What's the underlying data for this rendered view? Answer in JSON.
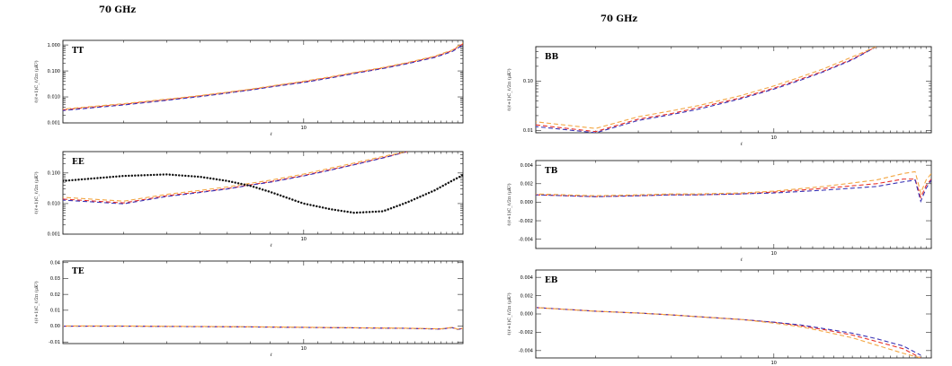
{
  "figure": {
    "left_title": "70 GHz",
    "right_title": "70 GHz"
  },
  "colors": {
    "red": "#e8322a",
    "blue": "#3a33b5",
    "orange": "#f3a743",
    "black": "#111111"
  },
  "chart_data": [
    {
      "type": "line",
      "label": "TT",
      "ylabel": "ℓ(ℓ+1)C_ℓ/2π  (μK²)",
      "xlabel": "ℓ",
      "xscale": "log",
      "yscale": "log",
      "xlim": [
        2,
        29
      ],
      "ylim": [
        0.001,
        1.5
      ],
      "x_tick_labels": [
        {
          "value": 10,
          "label": "10"
        }
      ],
      "y_tick_labels": [
        {
          "value": 0.001,
          "label": "0.001"
        },
        {
          "value": 0.01,
          "label": "0.010"
        },
        {
          "value": 0.1,
          "label": "0.100"
        },
        {
          "value": 1,
          "label": "1.000"
        }
      ],
      "series": [
        {
          "color": "#e8322a",
          "dash": "dashed",
          "x": [
            2,
            3,
            4,
            5,
            6,
            7,
            8,
            10,
            12,
            14,
            17,
            20,
            24,
            27,
            29
          ],
          "y": [
            0.0032,
            0.0052,
            0.0078,
            0.0108,
            0.0146,
            0.019,
            0.025,
            0.038,
            0.057,
            0.083,
            0.13,
            0.2,
            0.35,
            0.6,
            1.1
          ]
        },
        {
          "color": "#3a33b5",
          "dash": "dashed",
          "x": [
            2,
            3,
            4,
            5,
            6,
            7,
            8,
            10,
            12,
            14,
            17,
            20,
            24,
            27,
            29
          ],
          "y": [
            0.003,
            0.0049,
            0.0074,
            0.0103,
            0.014,
            0.0182,
            0.024,
            0.036,
            0.054,
            0.079,
            0.124,
            0.19,
            0.33,
            0.56,
            1.0
          ]
        },
        {
          "color": "#f3a743",
          "dash": "dashed",
          "x": [
            2,
            3,
            4,
            5,
            6,
            7,
            8,
            10,
            12,
            14,
            17,
            20,
            24,
            27,
            29
          ],
          "y": [
            0.0034,
            0.0055,
            0.0082,
            0.0113,
            0.0152,
            0.0198,
            0.026,
            0.04,
            0.06,
            0.087,
            0.136,
            0.21,
            0.37,
            0.64,
            1.2
          ]
        }
      ]
    },
    {
      "type": "line",
      "label": "EE",
      "ylabel": "ℓ(ℓ+1)C_ℓ/2π  (μK²)",
      "xlabel": "ℓ",
      "xscale": "log",
      "yscale": "log",
      "xlim": [
        2,
        29
      ],
      "ylim": [
        0.001,
        0.5
      ],
      "x_tick_labels": [
        {
          "value": 10,
          "label": "10"
        }
      ],
      "y_tick_labels": [
        {
          "value": 0.001,
          "label": "0.001"
        },
        {
          "value": 0.01,
          "label": "0.010"
        },
        {
          "value": 0.1,
          "label": "0.100"
        }
      ],
      "series": [
        {
          "color": "#e8322a",
          "dash": "dashed",
          "x": [
            2,
            3,
            4,
            5,
            6,
            7,
            8,
            10,
            12,
            14,
            17,
            20
          ],
          "y": [
            0.014,
            0.0105,
            0.018,
            0.024,
            0.031,
            0.041,
            0.052,
            0.083,
            0.13,
            0.19,
            0.32,
            0.5
          ]
        },
        {
          "color": "#3a33b5",
          "dash": "dashed",
          "x": [
            2,
            3,
            4,
            5,
            6,
            7,
            8,
            10,
            12,
            14,
            17,
            20
          ],
          "y": [
            0.013,
            0.0098,
            0.017,
            0.023,
            0.03,
            0.04,
            0.05,
            0.08,
            0.125,
            0.185,
            0.31,
            0.5
          ]
        },
        {
          "color": "#f3a743",
          "dash": "dashed",
          "x": [
            2,
            3,
            4,
            5,
            6,
            7,
            8,
            10,
            12,
            14,
            17,
            20
          ],
          "y": [
            0.016,
            0.012,
            0.02,
            0.027,
            0.035,
            0.046,
            0.058,
            0.092,
            0.145,
            0.21,
            0.35,
            0.5
          ]
        },
        {
          "color": "#111111",
          "dash": "dotted",
          "x": [
            2,
            3,
            4,
            5,
            6,
            7,
            8,
            10,
            12,
            14,
            17,
            20,
            24,
            27,
            29
          ],
          "y": [
            0.055,
            0.08,
            0.09,
            0.075,
            0.055,
            0.038,
            0.024,
            0.01,
            0.0065,
            0.005,
            0.0056,
            0.011,
            0.027,
            0.056,
            0.085
          ]
        }
      ]
    },
    {
      "type": "line",
      "label": "TE",
      "ylabel": "ℓ(ℓ+1)C_ℓ/2π  (μK²)",
      "xlabel": "ℓ",
      "xscale": "log",
      "yscale": "linear",
      "xlim": [
        2,
        29
      ],
      "ylim": [
        -0.011,
        0.041
      ],
      "x_tick_labels": [
        {
          "value": 10,
          "label": "10"
        }
      ],
      "y_tick_labels": [
        {
          "value": -0.01,
          "label": "-0.01"
        },
        {
          "value": 0,
          "label": "0.00"
        },
        {
          "value": 0.01,
          "label": "0.01"
        },
        {
          "value": 0.02,
          "label": "0.02"
        },
        {
          "value": 0.03,
          "label": "0.03"
        },
        {
          "value": 0.04,
          "label": "0.04"
        }
      ],
      "series": [
        {
          "color": "#e8322a",
          "dash": "dashed",
          "x": [
            2,
            3,
            4,
            6,
            8,
            10,
            14,
            20,
            25,
            27,
            28,
            29
          ],
          "y": [
            0.0,
            0.0,
            -0.0002,
            -0.0004,
            -0.0006,
            -0.0008,
            -0.0011,
            -0.0014,
            -0.0018,
            -0.0009,
            -0.002,
            -0.0014
          ]
        },
        {
          "color": "#3a33b5",
          "dash": "dashed",
          "x": [
            2,
            3,
            4,
            6,
            8,
            10,
            14,
            20,
            25,
            27,
            28,
            29
          ],
          "y": [
            0.0,
            0.0,
            -0.0002,
            -0.0004,
            -0.0006,
            -0.0008,
            -0.0011,
            -0.0014,
            -0.0019,
            -0.001,
            -0.0021,
            -0.0015
          ]
        },
        {
          "color": "#f3a743",
          "dash": "dashed",
          "x": [
            2,
            3,
            4,
            6,
            8,
            10,
            14,
            20,
            25,
            27,
            28,
            29
          ],
          "y": [
            0.0001,
            0.0001,
            -0.0001,
            -0.0003,
            -0.0005,
            -0.0007,
            -0.001,
            -0.0013,
            -0.0017,
            -0.0008,
            -0.0019,
            -0.0013
          ]
        }
      ]
    },
    {
      "type": "line",
      "label": "BB",
      "ylabel": "ℓ(ℓ+1)C_ℓ/2π  (μK²)",
      "xlabel": "ℓ",
      "xscale": "log",
      "yscale": "log",
      "xlim": [
        2,
        29
      ],
      "ylim": [
        0.009,
        0.5
      ],
      "x_tick_labels": [
        {
          "value": 10,
          "label": "10"
        }
      ],
      "y_tick_labels": [
        {
          "value": 0.01,
          "label": "0.01"
        },
        {
          "value": 0.1,
          "label": "0.10"
        }
      ],
      "series": [
        {
          "color": "#e8322a",
          "dash": "dashed",
          "x": [
            2,
            3,
            4,
            5,
            6,
            7,
            8,
            10,
            12,
            14,
            17,
            20
          ],
          "y": [
            0.013,
            0.0095,
            0.017,
            0.022,
            0.029,
            0.037,
            0.046,
            0.072,
            0.11,
            0.16,
            0.28,
            0.5
          ]
        },
        {
          "color": "#3a33b5",
          "dash": "dashed",
          "x": [
            2,
            3,
            4,
            5,
            6,
            7,
            8,
            10,
            12,
            14,
            17,
            20
          ],
          "y": [
            0.012,
            0.009,
            0.016,
            0.021,
            0.027,
            0.035,
            0.044,
            0.069,
            0.105,
            0.155,
            0.27,
            0.5
          ]
        },
        {
          "color": "#f3a743",
          "dash": "dashed",
          "x": [
            2,
            3,
            4,
            5,
            6,
            7,
            8,
            10,
            12,
            14,
            17,
            20
          ],
          "y": [
            0.015,
            0.011,
            0.019,
            0.025,
            0.032,
            0.041,
            0.051,
            0.08,
            0.122,
            0.178,
            0.31,
            0.5
          ]
        }
      ]
    },
    {
      "type": "line",
      "label": "TB",
      "ylabel": "ℓ(ℓ+1)C_ℓ/2π  (μK²)",
      "xlabel": "ℓ",
      "xscale": "log",
      "yscale": "linear",
      "xlim": [
        2,
        29
      ],
      "ylim": [
        -0.005,
        0.0045
      ],
      "x_tick_labels": [
        {
          "value": 10,
          "label": "10"
        }
      ],
      "y_tick_labels": [
        {
          "value": -0.004,
          "label": "-0.004"
        },
        {
          "value": -0.002,
          "label": "-0.002"
        },
        {
          "value": 0,
          "label": "0.000"
        },
        {
          "value": 0.002,
          "label": "0.002"
        },
        {
          "value": 0.004,
          "label": "0.004"
        }
      ],
      "series": [
        {
          "color": "#e8322a",
          "dash": "dashed",
          "x": [
            2,
            3,
            4,
            5,
            6,
            8,
            10,
            14,
            20,
            24,
            26,
            27,
            28,
            29
          ],
          "y": [
            0.0008,
            0.0006,
            0.0007,
            0.0008,
            0.0008,
            0.0009,
            0.0011,
            0.0015,
            0.002,
            0.0025,
            0.0025,
            0.0005,
            0.0018,
            0.0025
          ]
        },
        {
          "color": "#3a33b5",
          "dash": "dashed",
          "x": [
            2,
            3,
            4,
            5,
            6,
            8,
            10,
            14,
            20,
            24,
            26,
            27,
            28,
            29
          ],
          "y": [
            0.0008,
            0.0006,
            0.0007,
            0.0008,
            0.0008,
            0.0009,
            0.001,
            0.0013,
            0.0017,
            0.0022,
            0.0024,
            0.0001,
            0.0015,
            0.0024
          ]
        },
        {
          "color": "#f3a743",
          "dash": "dashed",
          "x": [
            2,
            3,
            4,
            5,
            6,
            8,
            10,
            14,
            20,
            24,
            26,
            27,
            28,
            29
          ],
          "y": [
            0.0009,
            0.0007,
            0.0008,
            0.0009,
            0.0009,
            0.001,
            0.0012,
            0.0017,
            0.0024,
            0.0031,
            0.0033,
            0.001,
            0.0024,
            0.0031
          ]
        }
      ]
    },
    {
      "type": "line",
      "label": "EB",
      "ylabel": "ℓ(ℓ+1)C_ℓ/2π  (μK²)",
      "xlabel": "ℓ",
      "xscale": "log",
      "yscale": "linear",
      "xlim": [
        2,
        29
      ],
      "ylim": [
        -0.0048,
        0.0048
      ],
      "x_tick_labels": [
        {
          "value": 10,
          "label": "10"
        }
      ],
      "y_tick_labels": [
        {
          "value": -0.004,
          "label": "-0.004"
        },
        {
          "value": -0.002,
          "label": "-0.002"
        },
        {
          "value": 0,
          "label": "0.000"
        },
        {
          "value": 0.002,
          "label": "0.002"
        },
        {
          "value": 0.004,
          "label": "0.004"
        }
      ],
      "series": [
        {
          "color": "#e8322a",
          "dash": "dashed",
          "x": [
            2,
            3,
            4,
            5,
            6,
            8,
            10,
            12,
            14,
            17,
            20,
            24,
            27
          ],
          "y": [
            0.0007,
            0.0003,
            0.0001,
            -0.0001,
            -0.0003,
            -0.0006,
            -0.0009,
            -0.0013,
            -0.0017,
            -0.0023,
            -0.003,
            -0.0038,
            -0.0048
          ]
        },
        {
          "color": "#3a33b5",
          "dash": "dashed",
          "x": [
            2,
            3,
            4,
            5,
            6,
            8,
            10,
            12,
            14,
            17,
            20,
            24,
            27
          ],
          "y": [
            0.0007,
            0.0003,
            0.0001,
            -0.0001,
            -0.0003,
            -0.0006,
            -0.0009,
            -0.0012,
            -0.0016,
            -0.0021,
            -0.0027,
            -0.0035,
            -0.0045
          ]
        },
        {
          "color": "#f3a743",
          "dash": "dashed",
          "x": [
            2,
            3,
            4,
            5,
            6,
            8,
            10,
            12,
            14,
            17,
            20,
            24,
            27
          ],
          "y": [
            0.0007,
            0.0003,
            0.0001,
            -0.0001,
            -0.0003,
            -0.0006,
            -0.001,
            -0.0014,
            -0.0019,
            -0.0026,
            -0.0034,
            -0.0043,
            -0.0048
          ]
        }
      ]
    }
  ]
}
